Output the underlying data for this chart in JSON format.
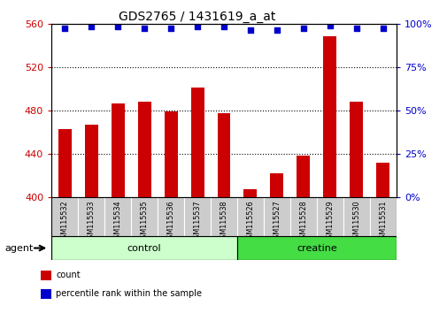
{
  "title": "GDS2765 / 1431619_a_at",
  "samples": [
    "GSM115532",
    "GSM115533",
    "GSM115534",
    "GSM115535",
    "GSM115536",
    "GSM115537",
    "GSM115538",
    "GSM115526",
    "GSM115527",
    "GSM115528",
    "GSM115529",
    "GSM115530",
    "GSM115531"
  ],
  "counts": [
    463,
    467,
    486,
    488,
    479,
    501,
    477,
    407,
    422,
    438,
    548,
    488,
    432
  ],
  "percentile": [
    97,
    98,
    98,
    97,
    97,
    98,
    98,
    96,
    96,
    97,
    99,
    97,
    97
  ],
  "bar_color": "#cc0000",
  "dot_color": "#0000cc",
  "ylim_left": [
    400,
    560
  ],
  "ylim_right": [
    0,
    100
  ],
  "yticks_left": [
    400,
    440,
    480,
    520,
    560
  ],
  "yticks_right": [
    0,
    25,
    50,
    75,
    100
  ],
  "groups": [
    {
      "label": "control",
      "indices": [
        0,
        1,
        2,
        3,
        4,
        5,
        6
      ],
      "color": "#ccffcc"
    },
    {
      "label": "creatine",
      "indices": [
        7,
        8,
        9,
        10,
        11,
        12
      ],
      "color": "#44dd44"
    }
  ],
  "agent_label": "agent",
  "legend_count_label": "count",
  "legend_pct_label": "percentile rank within the sample",
  "grid_color": "black",
  "tick_color_left": "#cc0000",
  "tick_color_right": "#0000cc",
  "background_plot": "#ffffff",
  "xticklabel_bg": "#cccccc",
  "title_fontsize": 10,
  "bar_width": 0.5
}
